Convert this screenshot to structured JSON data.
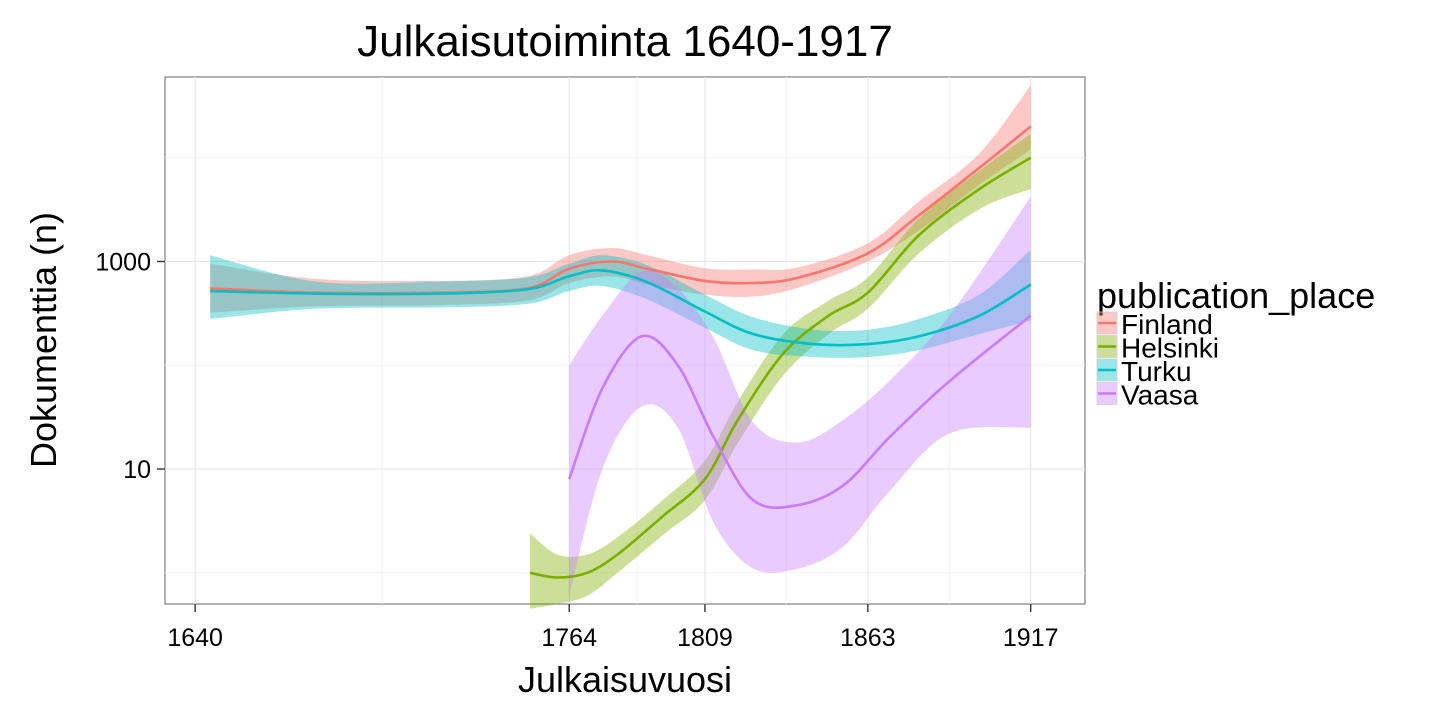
{
  "chart_data": {
    "type": "line",
    "title": "Julkaisutoiminta 1640-1917",
    "xlabel": "Julkaisuvuosi",
    "ylabel": "Dokumenttia (n)",
    "y_scale": "log10",
    "xlim": [
      1630,
      1935
    ],
    "ylim": [
      0.5,
      60000
    ],
    "x_ticks": [
      1640,
      1764,
      1809,
      1863,
      1917
    ],
    "x_tick_labels": [
      "1640",
      "1764",
      "1809",
      "1863",
      "1917"
    ],
    "y_ticks": [
      10,
      1000
    ],
    "y_tick_labels": [
      "10",
      "1000"
    ],
    "grid": true,
    "legend": {
      "title": "publication_place",
      "position": "right"
    },
    "series": [
      {
        "name": "Finland",
        "color": "#F8766D",
        "fill_alpha": 0.4,
        "x": [
          1645,
          1680,
          1720,
          1750,
          1764,
          1778,
          1790,
          1809,
          1825,
          1840,
          1863,
          1880,
          1900,
          1917
        ],
        "y": [
          550,
          500,
          500,
          550,
          850,
          1000,
          850,
          650,
          620,
          700,
          1200,
          2800,
          8000,
          20000
        ],
        "lower": [
          320,
          370,
          380,
          420,
          620,
          720,
          600,
          480,
          460,
          560,
          1000,
          2000,
          5500,
          12000
        ],
        "upper": [
          950,
          680,
          650,
          720,
          1150,
          1350,
          1150,
          860,
          840,
          880,
          1500,
          3800,
          11000,
          50000
        ]
      },
      {
        "name": "Helsinki",
        "color": "#7CAE00",
        "fill_alpha": 0.4,
        "x": [
          1751,
          1760,
          1770,
          1780,
          1795,
          1809,
          1820,
          1835,
          1850,
          1863,
          1880,
          1900,
          1917
        ],
        "y": [
          1.0,
          0.9,
          1.0,
          1.5,
          3.5,
          8.0,
          30,
          130,
          300,
          500,
          1800,
          5000,
          10000
        ],
        "lower": [
          0.45,
          0.5,
          0.6,
          1.0,
          2.3,
          5.0,
          18,
          80,
          200,
          350,
          1200,
          3200,
          5000
        ],
        "upper": [
          2.4,
          1.5,
          1.5,
          2.2,
          5.0,
          12,
          45,
          200,
          420,
          700,
          2600,
          7500,
          17000
        ]
      },
      {
        "name": "Turku",
        "color": "#00BFC4",
        "fill_alpha": 0.4,
        "x": [
          1645,
          1680,
          1720,
          1750,
          1764,
          1775,
          1790,
          1809,
          1825,
          1845,
          1863,
          1880,
          1900,
          1917
        ],
        "y": [
          520,
          490,
          490,
          540,
          720,
          820,
          630,
          330,
          200,
          160,
          160,
          190,
          300,
          600
        ],
        "lower": [
          280,
          350,
          360,
          390,
          520,
          580,
          430,
          230,
          140,
          120,
          120,
          140,
          200,
          270
        ],
        "upper": [
          1150,
          640,
          640,
          700,
          950,
          1150,
          920,
          480,
          290,
          220,
          220,
          280,
          480,
          1300
        ]
      },
      {
        "name": "Vaasa",
        "color": "#C77CFF",
        "fill_alpha": 0.4,
        "x": [
          1764,
          1775,
          1788,
          1800,
          1812,
          1825,
          1840,
          1855,
          1870,
          1890,
          1917
        ],
        "y": [
          8,
          60,
          190,
          100,
          20,
          5,
          4.5,
          7,
          20,
          70,
          300
        ],
        "lower": [
          0.6,
          10,
          40,
          25,
          3,
          1.1,
          1.1,
          1.8,
          6,
          22,
          25
        ],
        "upper": [
          100,
          300,
          800,
          550,
          180,
          28,
          18,
          30,
          70,
          300,
          4200
        ]
      }
    ]
  }
}
